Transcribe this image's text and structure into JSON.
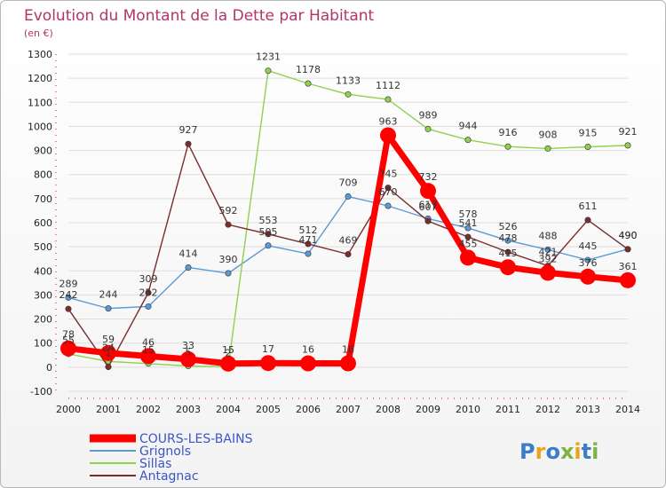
{
  "chart_data": {
    "type": "line",
    "title": "Evolution du Montant de la Dette par Habitant",
    "unit_label": "(en €)",
    "xlabel": "",
    "ylabel": "",
    "ylim": [
      -100,
      1300
    ],
    "y_ticks": [
      -100,
      0,
      100,
      200,
      300,
      400,
      500,
      600,
      700,
      800,
      900,
      1000,
      1100,
      1200,
      1300
    ],
    "categories": [
      "2000",
      "2001",
      "2002",
      "2003",
      "2004",
      "2005",
      "2006",
      "2007",
      "2008",
      "2009",
      "2010",
      "2011",
      "2012",
      "2013",
      "2014"
    ],
    "series": [
      {
        "name": "COURS-LES-BAINS",
        "color": "#ff0000",
        "width": 7,
        "marker": 9,
        "labels": true,
        "values": [
          78,
          59,
          46,
          33,
          15,
          17,
          16,
          16,
          963,
          732,
          455,
          415,
          392,
          376,
          361
        ]
      },
      {
        "name": "Grignols",
        "color": "#5b9bd5",
        "width": 1.4,
        "marker": 3.2,
        "labels": true,
        "values": [
          289,
          244,
          252,
          414,
          390,
          505,
          471,
          709,
          670,
          617,
          578,
          526,
          488,
          445,
          490
        ]
      },
      {
        "name": "Sillas",
        "color": "#92d050",
        "width": 1.4,
        "marker": 3.2,
        "labels": true,
        "values": [
          55,
          24,
          15,
          5,
          2,
          1231,
          1178,
          1133,
          1112,
          989,
          944,
          916,
          908,
          915,
          921
        ]
      },
      {
        "name": "Antagnac",
        "color": "#7b2c2c",
        "width": 1.4,
        "marker": 3.2,
        "labels": true,
        "values": [
          242,
          1,
          309,
          927,
          592,
          553,
          512,
          469,
          745,
          607,
          541,
          478,
          421,
          611,
          490
        ]
      }
    ]
  },
  "legend": [
    "COURS-LES-BAINS",
    "Grignols",
    "Sillas",
    "Antagnac"
  ],
  "logo": {
    "text": "Proxiti",
    "colors": [
      "#3a7dc9",
      "#e8a41c",
      "#3a7dc9",
      "#7cb342",
      "#e8a41c",
      "#3a7dc9",
      "#7cb342"
    ]
  },
  "colors": {
    "title": "#b2346b",
    "legend_text": "#3a55c8",
    "grid": "#dddddd"
  }
}
